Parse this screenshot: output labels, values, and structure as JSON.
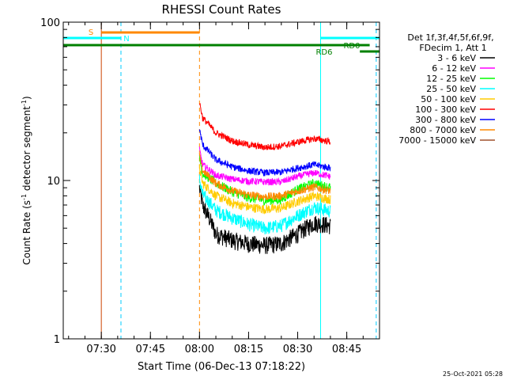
{
  "chart_data": {
    "type": "line",
    "title": "RHESSI Count Rates",
    "xlabel": "Start Time (06-Dec-13 07:18:22)",
    "ylabel_main": "Count Rate (s",
    "ylabel_sup": "-1",
    "ylabel_mid": " detector segment",
    "ylabel_sup2": "-1",
    "ylabel_end": ")",
    "yscale": "log",
    "ylim": [
      1,
      100
    ],
    "xlim": [
      "07:18:22",
      "08:55"
    ],
    "x_ticks": [
      "07:30",
      "07:45",
      "08:00",
      "08:15",
      "08:30",
      "08:45"
    ],
    "y_ticks": [
      "1",
      "10",
      "100"
    ],
    "legend_header": [
      "Det 1f,3f,4f,5f,6f,9f,",
      "FDecim 1, Att 1"
    ],
    "series": [
      {
        "name": "3 - 6 keV",
        "color": "#000000",
        "x": [
          "08:00",
          "08:05",
          "08:10",
          "08:15",
          "08:20",
          "08:25",
          "08:30",
          "08:35",
          "08:40"
        ],
        "values": [
          7.5,
          4.6,
          4.2,
          4.0,
          3.9,
          4.0,
          4.6,
          5.4,
          5.2
        ]
      },
      {
        "name": "6 - 12 keV",
        "color": "#ff00ff",
        "x": [
          "08:00",
          "08:05",
          "08:10",
          "08:15",
          "08:20",
          "08:25",
          "08:30",
          "08:35",
          "08:40"
        ],
        "values": [
          13,
          10.8,
          10.2,
          9.9,
          9.8,
          9.8,
          10.6,
          11.2,
          10.6
        ]
      },
      {
        "name": "12 - 25 keV",
        "color": "#00ff00",
        "x": [
          "08:00",
          "08:05",
          "08:10",
          "08:15",
          "08:20",
          "08:25",
          "08:30",
          "08:35",
          "08:40"
        ],
        "values": [
          11.5,
          9.6,
          8.5,
          7.8,
          7.5,
          7.6,
          8.8,
          9.6,
          9.0
        ]
      },
      {
        "name": "25 - 50 keV",
        "color": "#00ffff",
        "x": [
          "08:00",
          "08:05",
          "08:10",
          "08:15",
          "08:20",
          "08:25",
          "08:30",
          "08:35",
          "08:40"
        ],
        "values": [
          8.5,
          6.5,
          5.8,
          5.3,
          5.0,
          5.2,
          6.0,
          6.8,
          6.4
        ]
      },
      {
        "name": "50 - 100 keV",
        "color": "#ffcc00",
        "x": [
          "08:00",
          "08:05",
          "08:10",
          "08:15",
          "08:20",
          "08:25",
          "08:30",
          "08:35",
          "08:40"
        ],
        "values": [
          10.0,
          8.0,
          7.2,
          6.8,
          6.6,
          6.7,
          7.4,
          8.0,
          7.6
        ]
      },
      {
        "name": "100 - 300 keV",
        "color": "#ff0000",
        "x": [
          "08:00",
          "08:05",
          "08:10",
          "08:15",
          "08:20",
          "08:25",
          "08:30",
          "08:35",
          "08:40"
        ],
        "values": [
          26,
          20,
          17.8,
          16.8,
          16.2,
          16.5,
          17.5,
          18.4,
          17.6
        ]
      },
      {
        "name": "300 - 800 keV",
        "color": "#0000ff",
        "x": [
          "08:00",
          "08:05",
          "08:10",
          "08:15",
          "08:20",
          "08:25",
          "08:30",
          "08:35",
          "08:40"
        ],
        "values": [
          17.5,
          13.5,
          12.2,
          11.5,
          11.2,
          11.3,
          12.0,
          12.6,
          12.0
        ]
      },
      {
        "name": "800 - 7000 keV",
        "color": "#ff8800",
        "x": [
          "08:00",
          "08:05",
          "08:10",
          "08:15",
          "08:20",
          "08:25",
          "08:30",
          "08:35",
          "08:40"
        ],
        "values": [
          12.0,
          9.6,
          8.6,
          8.1,
          7.9,
          8.0,
          8.6,
          9.1,
          8.6
        ]
      },
      {
        "name": "7000 - 15000 keV",
        "color": "#a0522d",
        "x": [],
        "values": []
      }
    ],
    "annotations": [
      {
        "text": "S",
        "color": "#ff8800"
      },
      {
        "text": "N",
        "color": "#00ffff"
      },
      {
        "text": "RD6",
        "color": "#008000"
      },
      {
        "text": "RD0",
        "color": "#008000"
      }
    ],
    "bars": [
      {
        "name": "S",
        "color": "#ff8800",
        "start": "07:30",
        "end": "08:00"
      },
      {
        "name": "N-a",
        "color": "#00ffff",
        "start": "07:18:22",
        "end": "07:36"
      },
      {
        "name": "N-b",
        "color": "#00ffff",
        "start": "08:37",
        "end": "08:55"
      },
      {
        "name": "RD-main",
        "color": "#008000",
        "start": "07:18:22",
        "end": "08:52"
      },
      {
        "name": "RD6",
        "color": "#008000",
        "start": "08:49",
        "end": "08:55"
      }
    ],
    "vertical_lines": [
      {
        "time": "07:18:22",
        "color": "#00ffff",
        "style": "solid"
      },
      {
        "time": "07:30",
        "color": "#cc4400",
        "style": "solid"
      },
      {
        "time": "07:36",
        "color": "#00ccff",
        "style": "dashed"
      },
      {
        "time": "08:00",
        "color": "#ff8800",
        "style": "dashed"
      },
      {
        "time": "08:37",
        "color": "#00ffff",
        "style": "solid"
      },
      {
        "time": "08:54",
        "color": "#00ccff",
        "style": "dashed"
      }
    ],
    "footer_timestamp": "25-Oct-2021 05:28"
  }
}
